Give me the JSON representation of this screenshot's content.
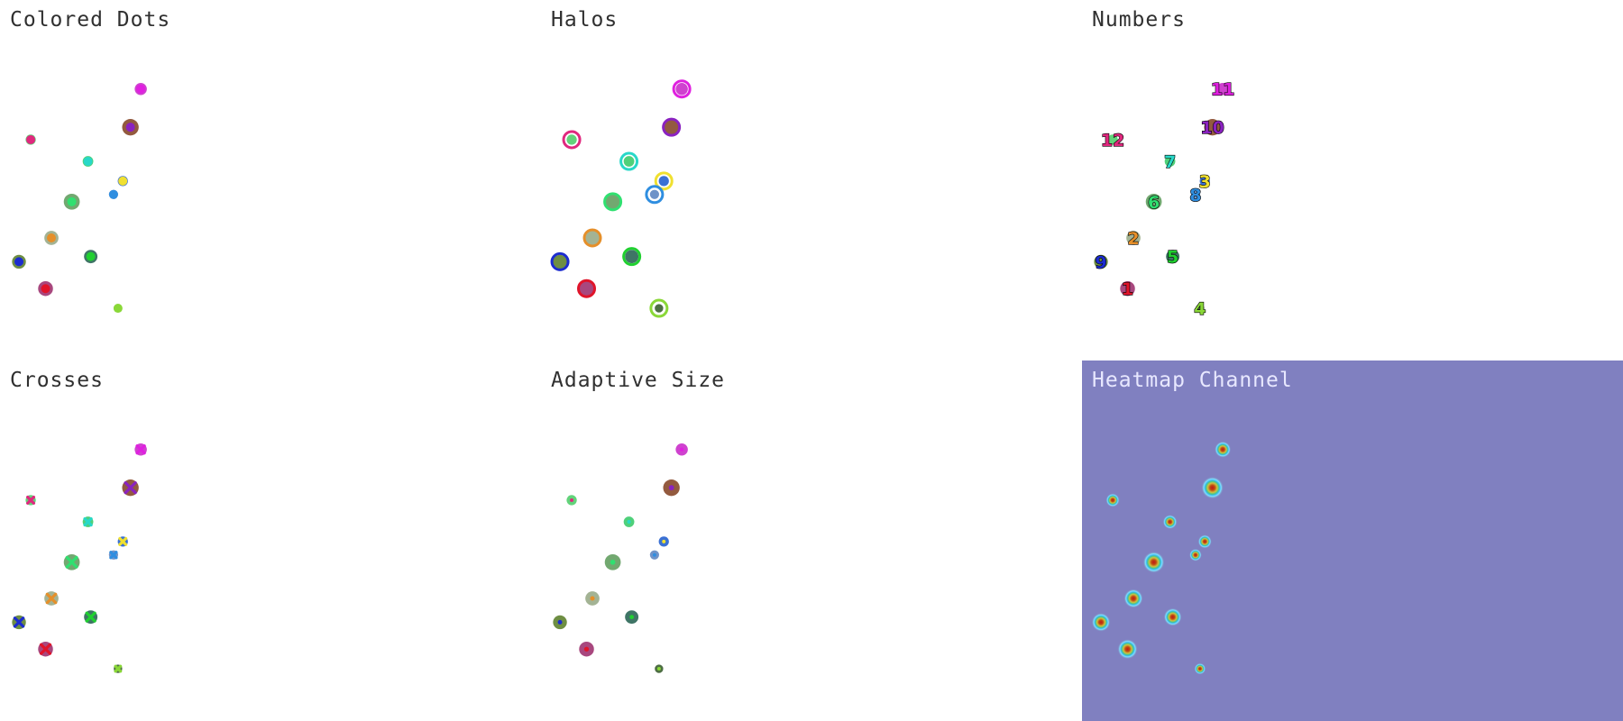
{
  "panels": [
    {
      "key": "dots",
      "title": "Colored Dots"
    },
    {
      "key": "halos",
      "title": "Halos"
    },
    {
      "key": "numbers",
      "title": "Numbers"
    },
    {
      "key": "crosses",
      "title": "Crosses"
    },
    {
      "key": "adaptive",
      "title": "Adaptive Size"
    },
    {
      "key": "heatmap",
      "title": "Heatmap Channel"
    }
  ],
  "heatmap_background": "#8080c0",
  "points": [
    {
      "id": 1,
      "label": "1",
      "blob_color": "#a8477e",
      "marker_color": "#e0142a",
      "size": 1.05
    },
    {
      "id": 2,
      "label": "2",
      "blob_color": "#a3b394",
      "marker_color": "#e58f2a",
      "size": 1.0
    },
    {
      "id": 3,
      "label": "3",
      "blob_color": "#3a70d4",
      "marker_color": "#f0e030",
      "size": 0.72
    },
    {
      "id": 4,
      "label": "4",
      "blob_color": "#4d6e44",
      "marker_color": "#8ad838",
      "size": 0.6
    },
    {
      "id": 5,
      "label": "5",
      "blob_color": "#3f7566",
      "marker_color": "#20d030",
      "size": 0.95
    },
    {
      "id": 6,
      "label": "6",
      "blob_color": "#72a870",
      "marker_color": "#30e070",
      "size": 1.13
    },
    {
      "id": 7,
      "label": "7",
      "blob_color": "#4fd07a",
      "marker_color": "#28d8c8",
      "size": 0.75
    },
    {
      "id": 8,
      "label": "8",
      "blob_color": "#6f93c8",
      "marker_color": "#2f8ee0",
      "size": 0.65
    },
    {
      "id": 9,
      "label": "9",
      "blob_color": "#6e8e43",
      "marker_color": "#1c2ccf",
      "size": 0.98
    },
    {
      "id": 10,
      "label": "10",
      "blob_color": "#935a3f",
      "marker_color": "#8a22c0",
      "size": 1.17
    },
    {
      "id": 11,
      "label": "11",
      "blob_color": "#cf42cf",
      "marker_color": "#e020e0",
      "size": 0.86
    },
    {
      "id": 12,
      "label": "12",
      "blob_color": "#62d37a",
      "marker_color": "#e0287e",
      "size": 0.72
    }
  ]
}
